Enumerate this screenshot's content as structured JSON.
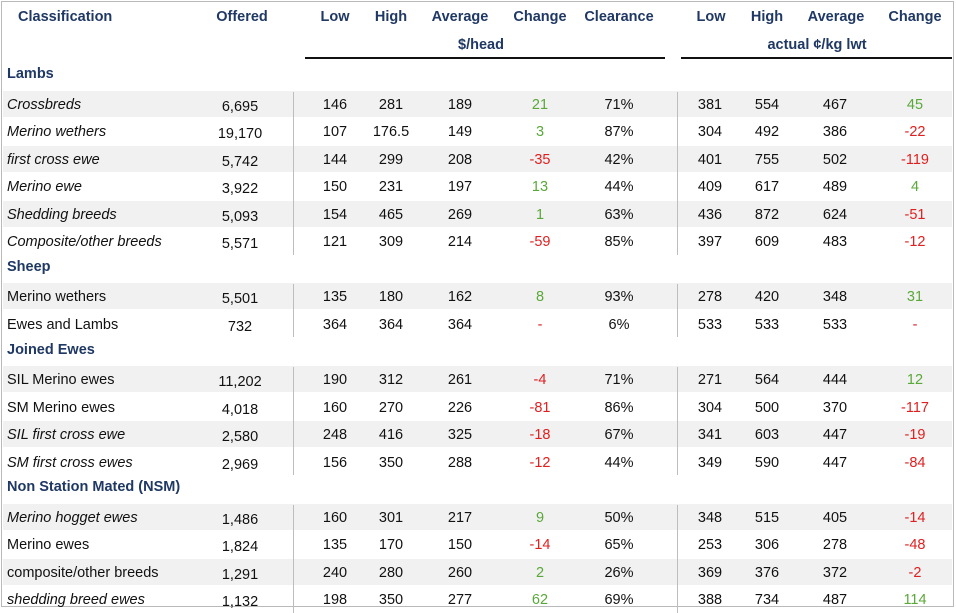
{
  "headers": {
    "classification": "Classification",
    "offered": "Offered",
    "low": "Low",
    "high": "High",
    "average": "Average",
    "change": "Change",
    "clearance": "Clearance",
    "low2": "Low",
    "high2": "High",
    "average2": "Average",
    "change2": "Change",
    "unit_head": "$/head",
    "unit_kg": "actual ¢/kg lwt"
  },
  "colors": {
    "header_text": "#1f3864",
    "positive": "#5aa83a",
    "negative": "#e02020",
    "band": "#f1f1f1"
  },
  "sections": [
    {
      "title": "Lambs",
      "rows": [
        {
          "name": "Crossbreds",
          "italic": true,
          "offered": "6,695",
          "low": "146",
          "high": "281",
          "avg": "189",
          "change": "21",
          "clearance": "71%",
          "low2": "381",
          "high2": "554",
          "avg2": "467",
          "change2": "45"
        },
        {
          "name": "Merino wethers",
          "italic": true,
          "offered": "19,170",
          "low": "107",
          "high": "176.5",
          "avg": "149",
          "change": "3",
          "clearance": "87%",
          "low2": "304",
          "high2": "492",
          "avg2": "386",
          "change2": "-22"
        },
        {
          "name": "first cross ewe",
          "italic": true,
          "offered": "5,742",
          "low": "144",
          "high": "299",
          "avg": "208",
          "change": "-35",
          "clearance": "42%",
          "low2": "401",
          "high2": "755",
          "avg2": "502",
          "change2": "-119"
        },
        {
          "name": "Merino ewe",
          "italic": true,
          "offered": "3,922",
          "low": "150",
          "high": "231",
          "avg": "197",
          "change": "13",
          "clearance": "44%",
          "low2": "409",
          "high2": "617",
          "avg2": "489",
          "change2": "4"
        },
        {
          "name": "Shedding breeds",
          "italic": true,
          "offered": "5,093",
          "low": "154",
          "high": "465",
          "avg": "269",
          "change": "1",
          "clearance": "63%",
          "low2": "436",
          "high2": "872",
          "avg2": "624",
          "change2": "-51"
        },
        {
          "name": "Composite/other breeds",
          "italic": true,
          "offered": "5,571",
          "low": "121",
          "high": "309",
          "avg": "214",
          "change": "-59",
          "clearance": "85%",
          "low2": "397",
          "high2": "609",
          "avg2": "483",
          "change2": "-12"
        }
      ]
    },
    {
      "title": "Sheep",
      "rows": [
        {
          "name": "Merino wethers",
          "italic": false,
          "offered": "5,501",
          "low": "135",
          "high": "180",
          "avg": "162",
          "change": "8",
          "clearance": "93%",
          "low2": "278",
          "high2": "420",
          "avg2": "348",
          "change2": "31"
        },
        {
          "name": "Ewes and Lambs",
          "italic": false,
          "offered": "732",
          "low": "364",
          "high": "364",
          "avg": "364",
          "change": "-",
          "clearance": "6%",
          "low2": "533",
          "high2": "533",
          "avg2": "533",
          "change2": "-"
        }
      ]
    },
    {
      "title": "Joined Ewes",
      "rows": [
        {
          "name": "SIL Merino ewes",
          "italic": false,
          "offered": "11,202",
          "low": "190",
          "high": "312",
          "avg": "261",
          "change": "-4",
          "clearance": "71%",
          "low2": "271",
          "high2": "564",
          "avg2": "444",
          "change2": "12"
        },
        {
          "name": "SM Merino ewes",
          "italic": false,
          "offered": "4,018",
          "low": "160",
          "high": "270",
          "avg": "226",
          "change": "-81",
          "clearance": "86%",
          "low2": "304",
          "high2": "500",
          "avg2": "370",
          "change2": "-117"
        },
        {
          "name": "SIL first cross ewe",
          "italic": true,
          "offered": "2,580",
          "low": "248",
          "high": "416",
          "avg": "325",
          "change": "-18",
          "clearance": "67%",
          "low2": "341",
          "high2": "603",
          "avg2": "447",
          "change2": "-19"
        },
        {
          "name": "SM first cross ewes",
          "italic": true,
          "offered": "2,969",
          "low": "156",
          "high": "350",
          "avg": "288",
          "change": "-12",
          "clearance": "44%",
          "low2": "349",
          "high2": "590",
          "avg2": "447",
          "change2": "-84"
        }
      ]
    },
    {
      "title": "Non Station Mated (NSM)",
      "rows": [
        {
          "name": "Merino hogget ewes",
          "italic": true,
          "offered": "1,486",
          "low": "160",
          "high": "301",
          "avg": "217",
          "change": "9",
          "clearance": "50%",
          "low2": "348",
          "high2": "515",
          "avg2": "405",
          "change2": "-14"
        },
        {
          "name": "Merino ewes",
          "italic": false,
          "offered": "1,824",
          "low": "135",
          "high": "170",
          "avg": "150",
          "change": "-14",
          "clearance": "65%",
          "low2": "253",
          "high2": "306",
          "avg2": "278",
          "change2": "-48"
        },
        {
          "name": "composite/other breeds",
          "italic": false,
          "offered": "1,291",
          "low": "240",
          "high": "280",
          "avg": "260",
          "change": "2",
          "clearance": "26%",
          "low2": "369",
          "high2": "376",
          "avg2": "372",
          "change2": "-2"
        },
        {
          "name": "shedding breed ewes",
          "italic": true,
          "offered": "1,132",
          "low": "198",
          "high": "350",
          "avg": "277",
          "change": "62",
          "clearance": "69%",
          "low2": "388",
          "high2": "734",
          "avg2": "487",
          "change2": "114"
        }
      ]
    }
  ]
}
